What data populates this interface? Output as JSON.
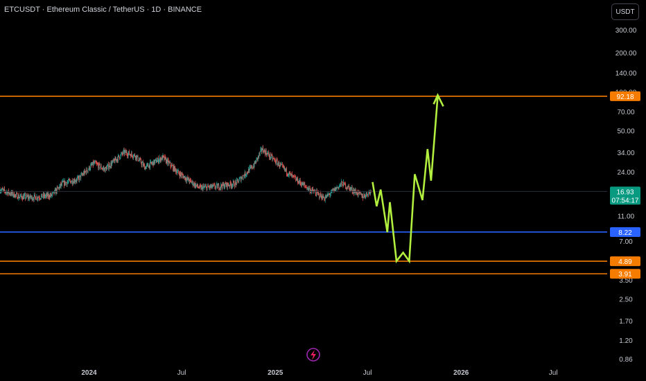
{
  "header": {
    "title": "ETCUSDT · Ethereum Classic / TetherUS · 1D · BINANCE",
    "currency_button": "USDT"
  },
  "colors": {
    "background": "#000000",
    "up": "#26a69a",
    "down": "#ef5350",
    "resistance": "#f57c00",
    "support_blue": "#2962ff",
    "projection": "#b2ef3e",
    "price_badge": "#089981",
    "axis_text": "#c5c8d0"
  },
  "chart_data": {
    "type": "candlestick",
    "symbol": "ETCUSDT",
    "scale": "log",
    "y_ticks": [
      300,
      200,
      140,
      100,
      70,
      50,
      34,
      24,
      11,
      7,
      3.5,
      2.5,
      1.7,
      1.2,
      0.86
    ],
    "y_tick_labels": [
      "300.00",
      "200.00",
      "140.00",
      "100.00",
      "70.00",
      "50.00",
      "34.00",
      "24.00",
      "11.00",
      "7.00",
      "3.50",
      "2.50",
      "1.70",
      "1.20",
      "0.86"
    ],
    "ylim": [
      0.78,
      380
    ],
    "x_range": [
      "2023-07-10",
      "2026-10-15"
    ],
    "x_ticks": [
      {
        "date": "2024-01-01",
        "label": "2024",
        "bold": true
      },
      {
        "date": "2024-07-01",
        "label": "Jul",
        "bold": false
      },
      {
        "date": "2025-01-01",
        "label": "2025",
        "bold": true
      },
      {
        "date": "2025-07-01",
        "label": "Jul",
        "bold": false
      },
      {
        "date": "2026-01-01",
        "label": "2026",
        "bold": true
      },
      {
        "date": "2026-07-01",
        "label": "Jul",
        "bold": false
      }
    ],
    "horizontal_levels": [
      {
        "value": 92.18,
        "label": "92.18",
        "color": "#f57c00"
      },
      {
        "value": 8.22,
        "label": "8.22",
        "color": "#2962ff"
      },
      {
        "value": 4.89,
        "label": "4.89",
        "color": "#f57c00"
      },
      {
        "value": 3.91,
        "label": "3.91",
        "color": "#f57c00"
      }
    ],
    "current_price": {
      "value": 16.93,
      "label": "16.93",
      "countdown": "07:54:17"
    },
    "price_anchors": [
      {
        "date": "2023-07-10",
        "close": 17.5
      },
      {
        "date": "2023-08-18",
        "close": 15.4
      },
      {
        "date": "2023-09-12",
        "close": 15.2
      },
      {
        "date": "2023-10-20",
        "close": 15.8
      },
      {
        "date": "2023-11-10",
        "close": 19.5
      },
      {
        "date": "2023-12-10",
        "close": 21.0
      },
      {
        "date": "2024-01-11",
        "close": 28.0
      },
      {
        "date": "2024-02-01",
        "close": 25.0
      },
      {
        "date": "2024-03-10",
        "close": 34.0
      },
      {
        "date": "2024-04-01",
        "close": 32.0
      },
      {
        "date": "2024-04-20",
        "close": 26.0
      },
      {
        "date": "2024-05-25",
        "close": 31.0
      },
      {
        "date": "2024-06-25",
        "close": 23.5
      },
      {
        "date": "2024-08-05",
        "close": 18.0
      },
      {
        "date": "2024-09-10",
        "close": 18.5
      },
      {
        "date": "2024-10-15",
        "close": 19.5
      },
      {
        "date": "2024-11-20",
        "close": 27.0
      },
      {
        "date": "2024-12-06",
        "close": 36.0
      },
      {
        "date": "2025-01-10",
        "close": 27.0
      },
      {
        "date": "2025-02-03",
        "close": 22.0
      },
      {
        "date": "2025-03-10",
        "close": 17.5
      },
      {
        "date": "2025-04-08",
        "close": 15.0
      },
      {
        "date": "2025-05-12",
        "close": 19.5
      },
      {
        "date": "2025-06-22",
        "close": 15.5
      },
      {
        "date": "2025-07-08",
        "close": 16.93
      }
    ],
    "projection_path": [
      {
        "date": "2025-07-11",
        "value": 20.0
      },
      {
        "date": "2025-07-19",
        "value": 13.0
      },
      {
        "date": "2025-07-27",
        "value": 17.5
      },
      {
        "date": "2025-08-09",
        "value": 8.2
      },
      {
        "date": "2025-08-14",
        "value": 14.0
      },
      {
        "date": "2025-08-27",
        "value": 4.9
      },
      {
        "date": "2025-09-09",
        "value": 5.7
      },
      {
        "date": "2025-09-21",
        "value": 4.9
      },
      {
        "date": "2025-10-02",
        "value": 23.0
      },
      {
        "date": "2025-10-17",
        "value": 14.5
      },
      {
        "date": "2025-10-27",
        "value": 36.0
      },
      {
        "date": "2025-11-03",
        "value": 20.5
      },
      {
        "date": "2025-11-16",
        "value": 92.0
      }
    ],
    "projection_arrowhead": [
      {
        "date": "2025-11-08",
        "value": 80.0
      },
      {
        "date": "2025-11-16",
        "value": 94.0
      },
      {
        "date": "2025-11-27",
        "value": 77.0
      }
    ]
  }
}
